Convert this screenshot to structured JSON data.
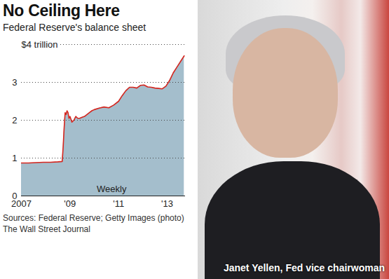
{
  "chart_data": {
    "type": "area",
    "title": "No Ceiling Here",
    "subtitle": "Federal Reserve's balance sheet",
    "annotations": [
      "Weekly"
    ],
    "source": [
      "Sources: Federal Reserve; Getty Images (photo)",
      "The Wall Street Journal"
    ],
    "caption": "Janet Yellen, Fed vice chairwoman",
    "x": [
      2007.0,
      2007.3,
      2007.6,
      2007.9,
      2008.2,
      2008.5,
      2008.68,
      2008.72,
      2008.76,
      2008.8,
      2008.84,
      2008.88,
      2008.92,
      2008.96,
      2009.0,
      2009.08,
      2009.16,
      2009.24,
      2009.32,
      2009.4,
      2009.5,
      2009.6,
      2009.7,
      2009.8,
      2009.9,
      2010.0,
      2010.2,
      2010.4,
      2010.6,
      2010.8,
      2011.0,
      2011.15,
      2011.3,
      2011.45,
      2011.6,
      2011.75,
      2011.9,
      2012.05,
      2012.2,
      2012.35,
      2012.5,
      2012.65,
      2012.8,
      2012.95,
      2013.1,
      2013.25,
      2013.4,
      2013.55,
      2013.7
    ],
    "values": [
      0.87,
      0.87,
      0.88,
      0.89,
      0.89,
      0.9,
      0.91,
      1.3,
      1.8,
      2.2,
      2.15,
      2.25,
      2.2,
      2.05,
      2.1,
      1.95,
      2.0,
      2.1,
      2.05,
      2.05,
      2.08,
      2.1,
      2.15,
      2.2,
      2.25,
      2.28,
      2.32,
      2.35,
      2.33,
      2.4,
      2.5,
      2.65,
      2.78,
      2.87,
      2.87,
      2.85,
      2.92,
      2.93,
      2.88,
      2.87,
      2.85,
      2.84,
      2.83,
      2.9,
      3.05,
      3.25,
      3.4,
      3.55,
      3.7
    ],
    "color": "#d7261e",
    "xlim": [
      2007,
      2013.75
    ],
    "xticks": [
      {
        "value": 2007,
        "label": "2007"
      },
      {
        "value": 2009,
        "label": "'09"
      },
      {
        "value": 2011,
        "label": "'11"
      },
      {
        "value": 2013,
        "label": "'13"
      }
    ],
    "ylim": [
      0,
      4
    ],
    "yticks": [
      0,
      1,
      2,
      3,
      {
        "value": 4,
        "label": "$4 trillion"
      }
    ],
    "grid": true
  }
}
